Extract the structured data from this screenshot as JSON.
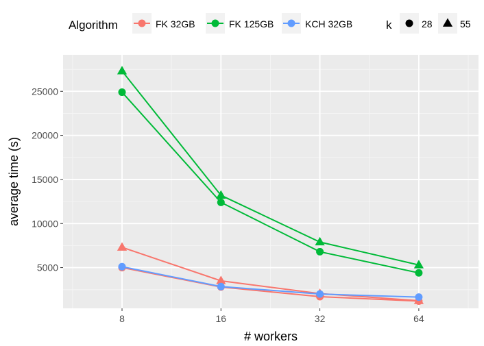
{
  "chart_data": {
    "type": "line",
    "xlabel": "# workers",
    "ylabel": "average time (s)",
    "x": [
      "8",
      "16",
      "32",
      "64"
    ],
    "x_scale": "log2",
    "ylim": [
      0,
      28000
    ],
    "yticks": [
      "5000",
      "10000",
      "15000",
      "20000",
      "25000"
    ],
    "ytick_values": [
      5000,
      10000,
      15000,
      20000,
      25000
    ],
    "grid": true,
    "legend_position": "top",
    "legend": {
      "color_title": "Algorithm",
      "colors": [
        {
          "label": "FK 32GB",
          "color": "#F8766D"
        },
        {
          "label": "FK 125GB",
          "color": "#00BA38"
        },
        {
          "label": "KCH 32GB",
          "color": "#619CFF"
        }
      ],
      "shape_title": "k",
      "shapes": [
        {
          "label": "28",
          "shape": "circle"
        },
        {
          "label": "55",
          "shape": "triangle"
        }
      ]
    },
    "series": [
      {
        "algorithm": "FK 32GB",
        "k": "28",
        "color": "#F8766D",
        "shape": "circle",
        "values": [
          5000,
          2800,
          1700,
          1200
        ]
      },
      {
        "algorithm": "FK 32GB",
        "k": "55",
        "color": "#F8766D",
        "shape": "triangle",
        "values": [
          7300,
          3500,
          2050,
          1250
        ]
      },
      {
        "algorithm": "FK 125GB",
        "k": "28",
        "color": "#00BA38",
        "shape": "circle",
        "values": [
          24900,
          12400,
          6800,
          4400
        ]
      },
      {
        "algorithm": "FK 125GB",
        "k": "55",
        "color": "#00BA38",
        "shape": "triangle",
        "values": [
          27300,
          13200,
          7900,
          5300
        ]
      },
      {
        "algorithm": "KCH 32GB",
        "k": "28",
        "color": "#619CFF",
        "shape": "circle",
        "values": [
          5100,
          2850,
          2000,
          1650
        ]
      }
    ]
  }
}
